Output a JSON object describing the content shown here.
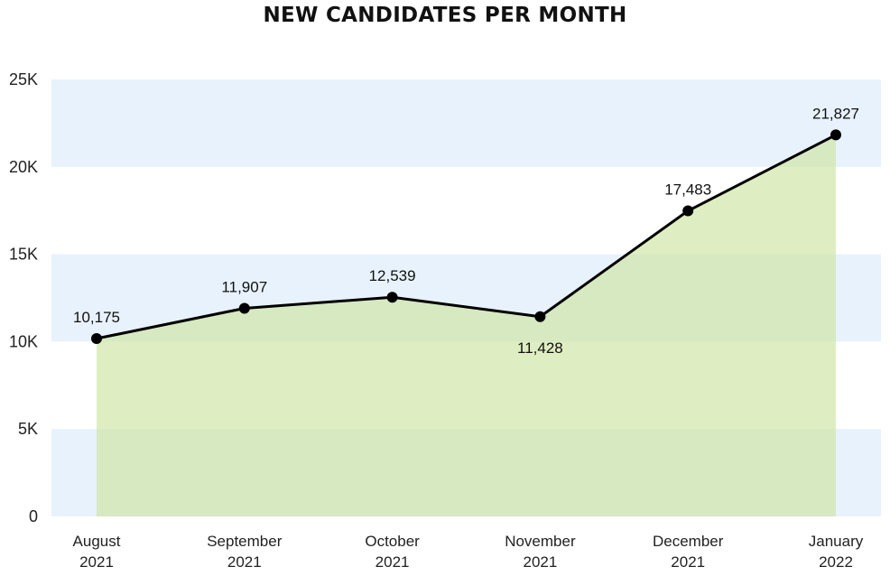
{
  "chart_data": {
    "type": "area",
    "title": "NEW CANDIDATES PER MONTH",
    "xlabel": "",
    "ylabel": "",
    "categories": [
      [
        "August",
        "2021"
      ],
      [
        "September",
        "2021"
      ],
      [
        "October",
        "2021"
      ],
      [
        "November",
        "2021"
      ],
      [
        "December",
        "2021"
      ],
      [
        "January",
        "2022"
      ]
    ],
    "values": [
      10175,
      11907,
      12539,
      11428,
      17483,
      21827
    ],
    "data_labels": [
      "10,175",
      "11,907",
      "12,539",
      "11,428",
      "17,483",
      "21,827"
    ],
    "data_label_position": [
      "above",
      "above",
      "above",
      "below",
      "above",
      "above"
    ],
    "ylim": [
      0,
      25000
    ],
    "yticks": [
      0,
      5000,
      10000,
      15000,
      20000,
      25000
    ],
    "ytick_labels": [
      "0",
      "5K",
      "10K",
      "15K",
      "20K",
      "25K"
    ],
    "grid": false,
    "legend": "none",
    "colors": {
      "line": "#000000",
      "marker": "#000000",
      "area_fill": "#c9e39a",
      "band_fill": "#e8f2fd"
    }
  }
}
